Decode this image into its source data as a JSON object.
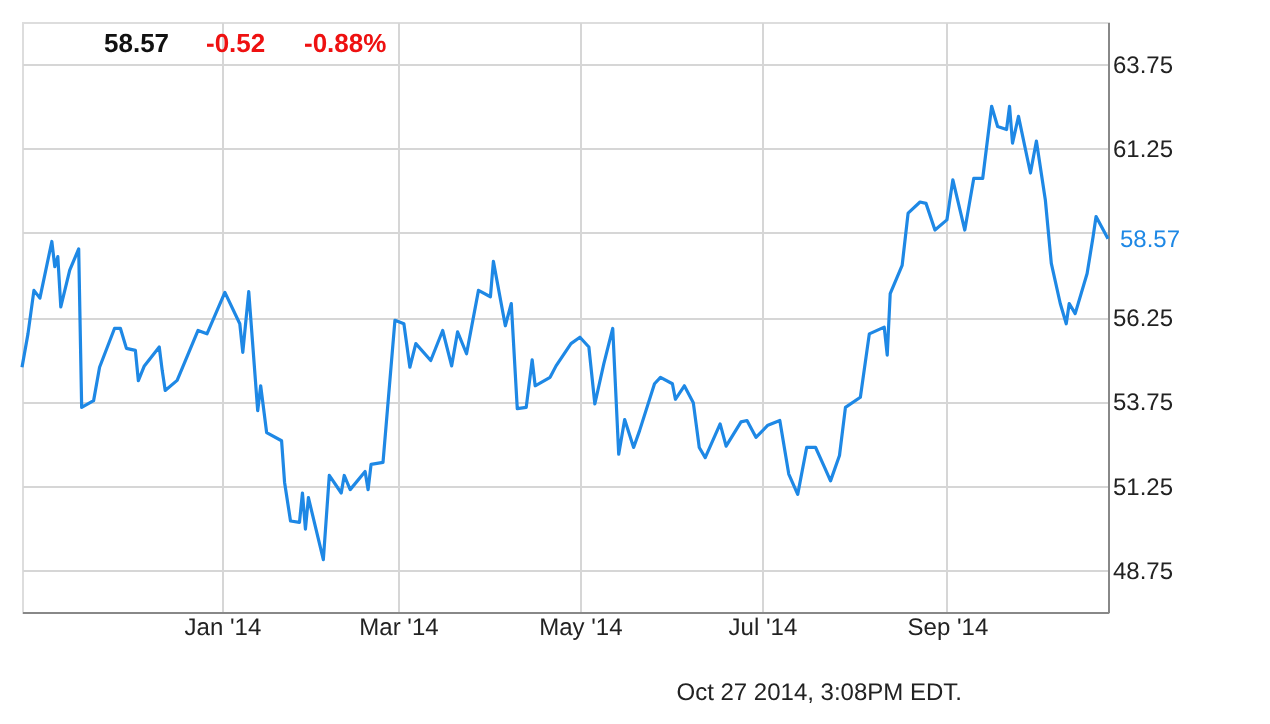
{
  "chart_data": {
    "type": "line",
    "x": [
      "2013-10-26",
      "2013-10-28",
      "2013-10-30",
      "2013-11-01",
      "2013-11-05",
      "2013-11-06",
      "2013-11-07",
      "2013-11-08",
      "2013-11-11",
      "2013-11-14",
      "2013-11-15",
      "2013-11-19",
      "2013-11-21",
      "2013-11-26",
      "2013-11-28",
      "2013-11-30",
      "2013-12-03",
      "2013-12-04",
      "2013-12-06",
      "2013-12-11",
      "2013-12-12",
      "2013-12-13",
      "2013-12-17",
      "2013-12-24",
      "2013-12-27",
      "2014-01-02",
      "2014-01-07",
      "2014-01-08",
      "2014-01-10",
      "2014-01-13",
      "2014-01-14",
      "2014-01-16",
      "2014-01-21",
      "2014-01-22",
      "2014-01-24",
      "2014-01-27",
      "2014-01-28",
      "2014-01-29",
      "2014-01-30",
      "2014-02-04",
      "2014-02-06",
      "2014-02-10",
      "2014-02-11",
      "2014-02-13",
      "2014-02-18",
      "2014-02-19",
      "2014-02-20",
      "2014-02-24",
      "2014-02-28",
      "2014-03-03",
      "2014-03-05",
      "2014-03-07",
      "2014-03-12",
      "2014-03-16",
      "2014-03-19",
      "2014-03-21",
      "2014-03-24",
      "2014-03-28",
      "2014-04-01",
      "2014-04-02",
      "2014-04-06",
      "2014-04-08",
      "2014-04-10",
      "2014-04-13",
      "2014-04-15",
      "2014-04-16",
      "2014-04-21",
      "2014-04-23",
      "2014-04-28",
      "2014-05-01",
      "2014-05-04",
      "2014-05-06",
      "2014-05-09",
      "2014-05-12",
      "2014-05-14",
      "2014-05-16",
      "2014-05-19",
      "2014-05-21",
      "2014-05-26",
      "2014-05-28",
      "2014-06-01",
      "2014-06-02",
      "2014-06-05",
      "2014-06-08",
      "2014-06-10",
      "2014-06-12",
      "2014-06-17",
      "2014-06-19",
      "2014-06-24",
      "2014-06-26",
      "2014-06-29",
      "2014-07-03",
      "2014-07-07",
      "2014-07-10",
      "2014-07-13",
      "2014-07-16",
      "2014-07-19",
      "2014-07-22",
      "2014-07-24",
      "2014-07-27",
      "2014-07-29",
      "2014-08-03",
      "2014-08-06",
      "2014-08-11",
      "2014-08-12",
      "2014-08-13",
      "2014-08-17",
      "2014-08-19",
      "2014-08-23",
      "2014-08-25",
      "2014-08-28",
      "2014-09-01",
      "2014-09-03",
      "2014-09-07",
      "2014-09-10",
      "2014-09-13",
      "2014-09-16",
      "2014-09-18",
      "2014-09-21",
      "2014-09-22",
      "2014-09-23",
      "2014-09-25",
      "2014-09-29",
      "2014-10-01",
      "2014-10-04",
      "2014-10-06",
      "2014-10-09",
      "2014-10-11",
      "2014-10-12",
      "2014-10-14",
      "2014-10-18",
      "2014-10-20",
      "2014-10-21",
      "2014-10-25"
    ],
    "series": [
      {
        "color": "#1e88e5",
        "values": [
          54.76,
          55.75,
          57.04,
          56.81,
          58.49,
          57.74,
          58.04,
          56.55,
          57.64,
          58.27,
          53.57,
          53.77,
          54.76,
          55.91,
          55.91,
          55.32,
          55.26,
          54.36,
          54.8,
          55.36,
          54.66,
          54.07,
          54.37,
          55.85,
          55.75,
          56.98,
          56.05,
          55.2,
          57.0,
          53.47,
          54.21,
          52.82,
          52.58,
          51.35,
          50.2,
          50.16,
          51.03,
          49.96,
          50.89,
          49.05,
          51.55,
          51.03,
          51.55,
          51.13,
          51.67,
          51.13,
          51.88,
          51.94,
          56.15,
          56.05,
          54.76,
          55.46,
          54.96,
          55.85,
          54.8,
          55.81,
          55.16,
          57.04,
          56.85,
          57.9,
          55.99,
          56.65,
          53.53,
          53.57,
          54.98,
          54.21,
          54.46,
          54.8,
          55.46,
          55.65,
          55.36,
          53.67,
          54.86,
          55.91,
          52.18,
          53.21,
          52.38,
          52.88,
          54.27,
          54.46,
          54.27,
          53.81,
          54.21,
          53.71,
          52.38,
          52.08,
          53.08,
          52.42,
          53.14,
          53.18,
          52.68,
          53.04,
          53.18,
          51.59,
          50.99,
          52.38,
          52.38,
          51.79,
          51.39,
          52.14,
          53.57,
          53.87,
          55.75,
          55.95,
          55.12,
          56.94,
          57.78,
          59.33,
          59.66,
          59.62,
          58.83,
          59.13,
          60.32,
          58.83,
          60.36,
          60.36,
          62.5,
          61.9,
          61.81,
          62.5,
          61.41,
          62.2,
          60.52,
          61.47,
          59.72,
          57.84,
          56.65,
          56.05,
          56.65,
          56.35,
          57.54,
          58.63,
          59.23,
          58.57
        ]
      }
    ],
    "xlim": [
      "2013-10-26",
      "2014-10-25"
    ],
    "xticks": [
      {
        "value": "2014-01-01",
        "label": "Jan '14"
      },
      {
        "value": "2014-03-01",
        "label": "Mar '14"
      },
      {
        "value": "2014-05-01",
        "label": "May '14"
      },
      {
        "value": "2014-07-01",
        "label": "Jul '14"
      },
      {
        "value": "2014-09-01",
        "label": "Sep '14"
      }
    ],
    "ylim": [
      47.5,
      65.0
    ],
    "yticks": [
      48.75,
      51.25,
      53.75,
      56.25,
      {
        "value": 58.75,
        "label": null
      },
      61.25,
      63.75
    ],
    "grid": true,
    "line_style": "solid",
    "annotations": [
      "58.57",
      "-0.52",
      "-0.88%",
      {
        "text": "58.57",
        "x": "2014-10-25",
        "y": 58.57
      },
      "Oct 27 2014, 3:08PM EDT."
    ]
  }
}
